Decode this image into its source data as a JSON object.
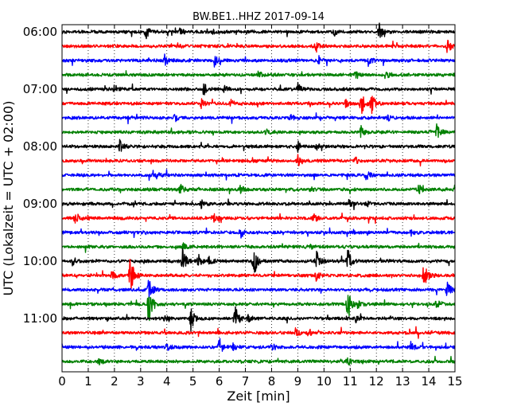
{
  "chart_data": {
    "type": "line",
    "title": "BW.BE1..HHZ 2017-09-14",
    "xlabel": "Zeit  [min]",
    "ylabel": "UTC (Lokalzeit = UTC + 02:00)",
    "xlim": [
      0,
      15
    ],
    "x_ticks": [
      "0",
      "1",
      "2",
      "3",
      "4",
      "5",
      "6",
      "7",
      "8",
      "9",
      "10",
      "11",
      "12",
      "13",
      "14",
      "15"
    ],
    "y_tick_labels": [
      "06:00",
      "07:00",
      "08:00",
      "09:00",
      "10:00",
      "11:00"
    ],
    "grid": "vertical dotted lines at each minute",
    "trace_colors": [
      "#000000",
      "#ff0000",
      "#0000ff",
      "#008000"
    ],
    "trace_minutes": 15,
    "series": [
      {
        "start": "06:00",
        "events": [
          [
            3.2,
            0.55
          ],
          [
            4.5,
            0.25
          ],
          [
            5.7,
            0.2
          ],
          [
            10.4,
            0.3
          ],
          [
            12.1,
            0.6
          ]
        ]
      },
      {
        "start": "06:15",
        "events": [
          [
            4.4,
            0.25
          ],
          [
            9.7,
            0.45
          ],
          [
            14.7,
            0.55
          ]
        ]
      },
      {
        "start": "06:30",
        "events": [
          [
            3.9,
            0.5
          ],
          [
            5.8,
            0.45
          ],
          [
            9.8,
            0.3
          ],
          [
            11.7,
            0.2
          ]
        ]
      },
      {
        "start": "06:45",
        "events": [
          [
            7.5,
            0.3
          ],
          [
            11.2,
            0.35
          ],
          [
            12.4,
            0.2
          ]
        ]
      },
      {
        "start": "07:00",
        "events": [
          [
            2.0,
            0.35
          ],
          [
            5.4,
            0.45
          ],
          [
            6.2,
            0.25
          ],
          [
            9.0,
            0.4
          ]
        ]
      },
      {
        "start": "07:15",
        "events": [
          [
            5.3,
            0.35
          ],
          [
            6.4,
            0.35
          ],
          [
            10.8,
            0.3
          ],
          [
            11.4,
            1.3
          ],
          [
            11.8,
            0.8
          ]
        ]
      },
      {
        "start": "07:30",
        "events": [
          [
            4.3,
            0.25
          ],
          [
            8.7,
            0.2
          ],
          [
            12.4,
            0.3
          ]
        ]
      },
      {
        "start": "07:45",
        "events": [
          [
            7.8,
            0.3
          ],
          [
            11.4,
            0.6
          ],
          [
            14.3,
            0.55
          ]
        ]
      },
      {
        "start": "08:00",
        "events": [
          [
            2.2,
            0.5
          ],
          [
            9.0,
            0.35
          ],
          [
            9.7,
            0.25
          ]
        ]
      },
      {
        "start": "08:15",
        "events": [
          [
            9.0,
            0.45
          ],
          [
            11.2,
            0.3
          ]
        ]
      },
      {
        "start": "08:30",
        "events": [
          [
            3.6,
            0.25
          ],
          [
            11.6,
            0.4
          ]
        ]
      },
      {
        "start": "08:45",
        "events": [
          [
            4.5,
            0.45
          ],
          [
            6.8,
            0.3
          ],
          [
            9.5,
            0.25
          ],
          [
            13.6,
            0.35
          ]
        ]
      },
      {
        "start": "09:00",
        "events": [
          [
            5.3,
            0.3
          ],
          [
            10.9,
            0.35
          ],
          [
            11.6,
            0.3
          ]
        ]
      },
      {
        "start": "09:15",
        "events": [
          [
            0.5,
            0.45
          ],
          [
            5.8,
            0.25
          ],
          [
            9.6,
            0.35
          ]
        ]
      },
      {
        "start": "09:30",
        "events": [
          [
            6.8,
            0.45
          ],
          [
            13.3,
            0.3
          ]
        ]
      },
      {
        "start": "09:45",
        "events": [
          [
            4.6,
            0.25
          ],
          [
            9.5,
            0.2
          ]
        ]
      },
      {
        "start": "10:00",
        "events": [
          [
            0.4,
            0.4
          ],
          [
            4.6,
            0.9
          ],
          [
            5.2,
            0.45
          ],
          [
            5.6,
            0.35
          ],
          [
            7.3,
            1.3
          ],
          [
            9.7,
            0.8
          ],
          [
            10.9,
            0.95
          ]
        ]
      },
      {
        "start": "10:15",
        "events": [
          [
            1.9,
            0.35
          ],
          [
            2.6,
            1.5
          ],
          [
            9.7,
            0.3
          ],
          [
            13.8,
            1.1
          ]
        ]
      },
      {
        "start": "10:30",
        "events": [
          [
            3.3,
            0.9
          ],
          [
            14.7,
            0.55
          ]
        ]
      },
      {
        "start": "10:45",
        "events": [
          [
            3.3,
            1.9
          ],
          [
            10.9,
            1.2
          ],
          [
            11.3,
            0.3
          ],
          [
            14.3,
            0.35
          ]
        ]
      },
      {
        "start": "11:00",
        "events": [
          [
            3.9,
            0.2
          ],
          [
            4.9,
            1.1
          ],
          [
            6.6,
            0.95
          ],
          [
            7.1,
            0.25
          ],
          [
            11.2,
            0.3
          ]
        ]
      },
      {
        "start": "11:15",
        "events": [
          [
            8.9,
            0.35
          ],
          [
            9.4,
            0.3
          ]
        ]
      },
      {
        "start": "11:30",
        "events": [
          [
            4.0,
            0.35
          ],
          [
            6.0,
            0.7
          ],
          [
            6.5,
            0.25
          ],
          [
            8.0,
            0.3
          ],
          [
            13.3,
            0.35
          ]
        ]
      },
      {
        "start": "11:45",
        "events": [
          [
            1.4,
            0.2
          ],
          [
            10.9,
            0.3
          ]
        ]
      }
    ]
  }
}
